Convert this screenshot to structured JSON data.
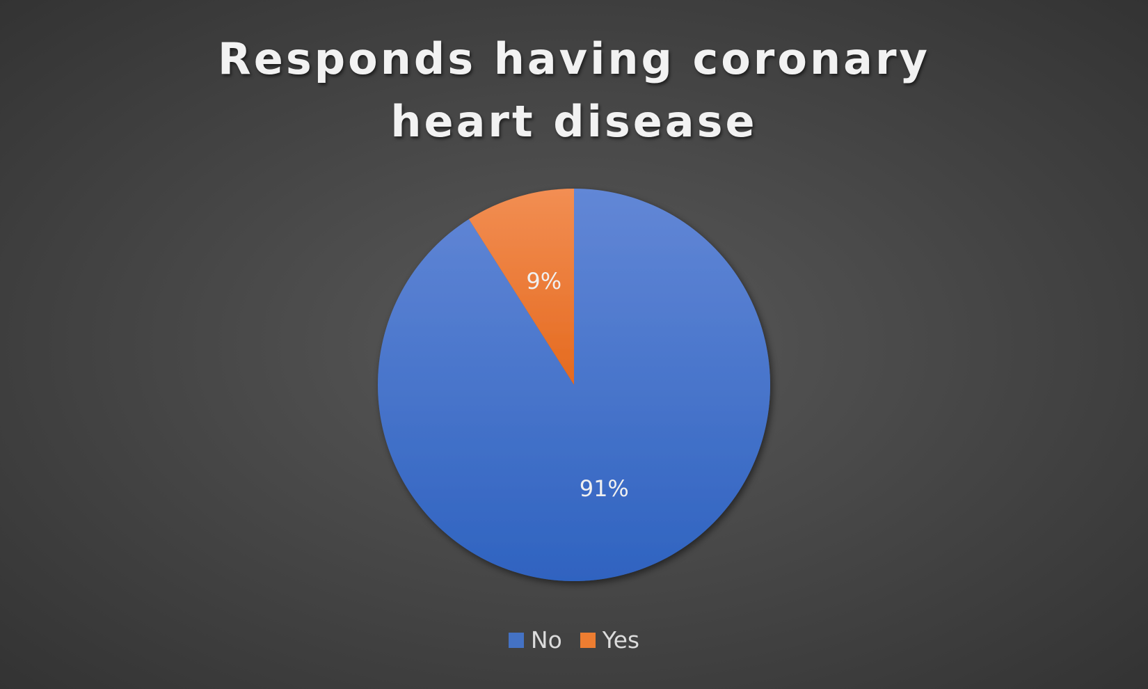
{
  "chart_data": {
    "type": "pie",
    "title": "Responds having coronary heart disease",
    "categories": [
      "No",
      "Yes"
    ],
    "values": [
      91,
      9
    ],
    "data_labels": [
      "91%",
      "9%"
    ],
    "colors": [
      "#4472c4",
      "#ed7d31"
    ],
    "legend_position": "bottom",
    "start_angle": "12 o'clock",
    "direction": "clockwise"
  },
  "background_color": "#4a4a4a"
}
